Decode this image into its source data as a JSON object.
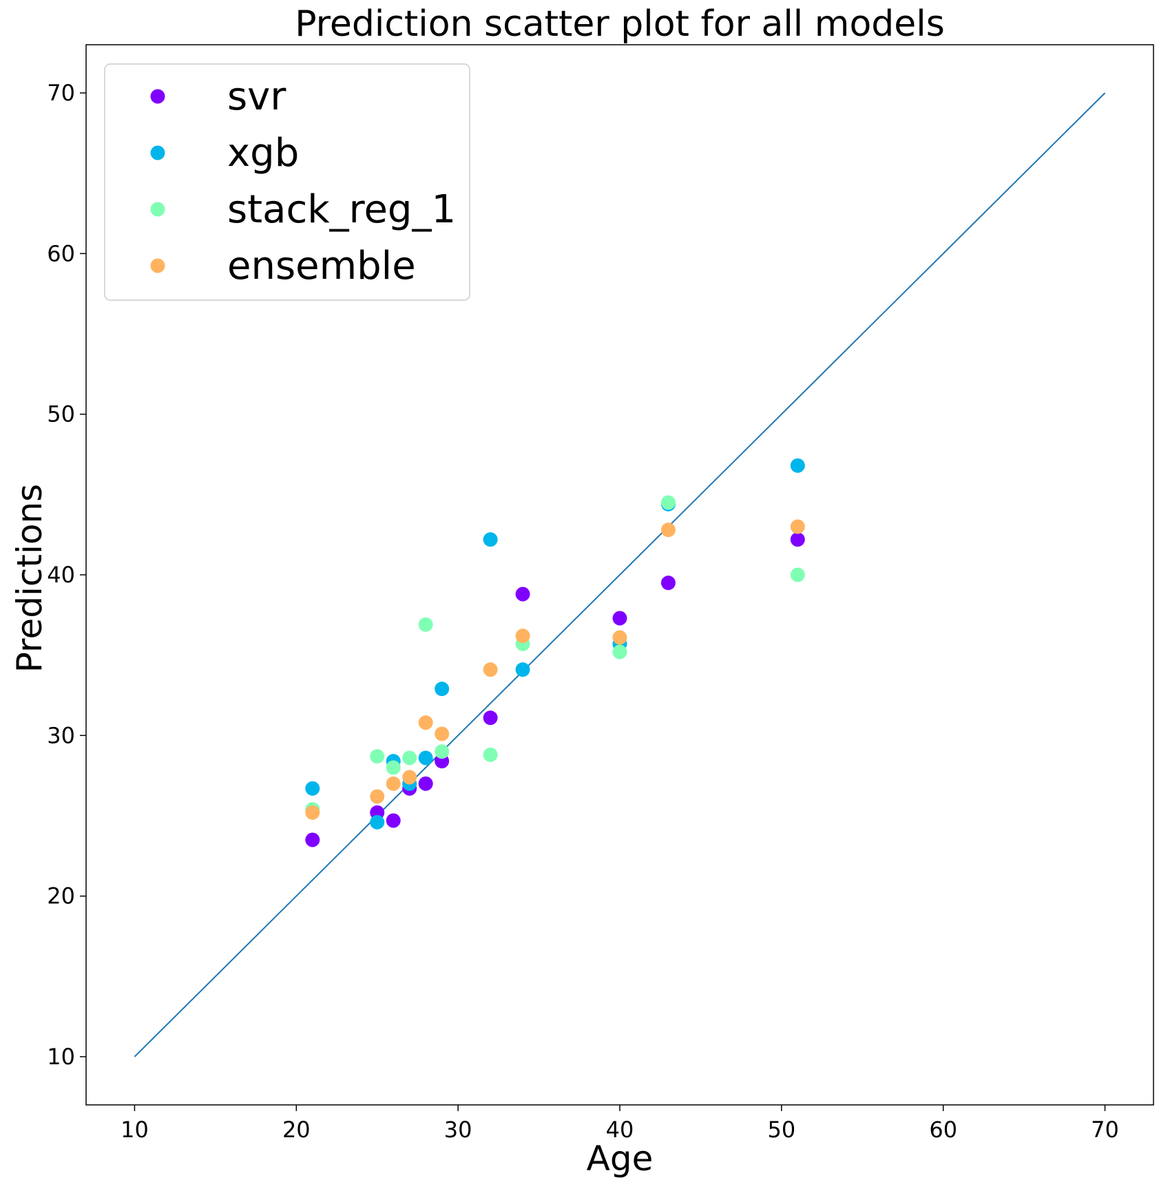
{
  "chart_data": {
    "type": "scatter",
    "title": "Prediction scatter plot for all models",
    "xlabel": "Age",
    "ylabel": "Predictions",
    "xlim": [
      7,
      73
    ],
    "ylim": [
      7,
      73
    ],
    "xticks": [
      "10",
      "20",
      "30",
      "40",
      "50",
      "60",
      "70"
    ],
    "yticks": [
      "10",
      "20",
      "30",
      "40",
      "50",
      "60",
      "70"
    ],
    "grid": false,
    "legend_position": "top-left",
    "reference_line": {
      "x": [
        10,
        70
      ],
      "y": [
        10,
        70
      ],
      "color": "#1f77b4"
    },
    "series": [
      {
        "name": "svr",
        "color": "#8000ff",
        "points": [
          [
            21,
            23.5
          ],
          [
            25,
            25.2
          ],
          [
            26,
            24.7
          ],
          [
            27,
            26.7
          ],
          [
            28,
            27.0
          ],
          [
            29,
            28.4
          ],
          [
            32,
            31.1
          ],
          [
            34,
            38.8
          ],
          [
            40,
            37.3
          ],
          [
            43,
            39.5
          ],
          [
            51,
            42.2
          ]
        ]
      },
      {
        "name": "xgb",
        "color": "#00b5eb",
        "points": [
          [
            21,
            26.7
          ],
          [
            25,
            24.6
          ],
          [
            26,
            28.4
          ],
          [
            27,
            27.0
          ],
          [
            28,
            28.6
          ],
          [
            29,
            32.9
          ],
          [
            32,
            42.2
          ],
          [
            34,
            34.1
          ],
          [
            40,
            35.7
          ],
          [
            43,
            44.4
          ],
          [
            51,
            46.8
          ]
        ]
      },
      {
        "name": "stack_reg_1",
        "color": "#80ffb4",
        "points": [
          [
            21,
            25.4
          ],
          [
            25,
            28.7
          ],
          [
            26,
            28.0
          ],
          [
            27,
            28.6
          ],
          [
            28,
            36.9
          ],
          [
            29,
            29.0
          ],
          [
            32,
            28.8
          ],
          [
            34,
            35.7
          ],
          [
            40,
            35.2
          ],
          [
            43,
            44.5
          ],
          [
            51,
            40.0
          ]
        ]
      },
      {
        "name": "ensemble",
        "color": "#ffb360",
        "points": [
          [
            21,
            25.2
          ],
          [
            25,
            26.2
          ],
          [
            26,
            27.0
          ],
          [
            27,
            27.4
          ],
          [
            28,
            30.8
          ],
          [
            29,
            30.1
          ],
          [
            32,
            34.1
          ],
          [
            34,
            36.2
          ],
          [
            40,
            36.1
          ],
          [
            43,
            42.8
          ],
          [
            51,
            43.0
          ]
        ]
      }
    ]
  }
}
